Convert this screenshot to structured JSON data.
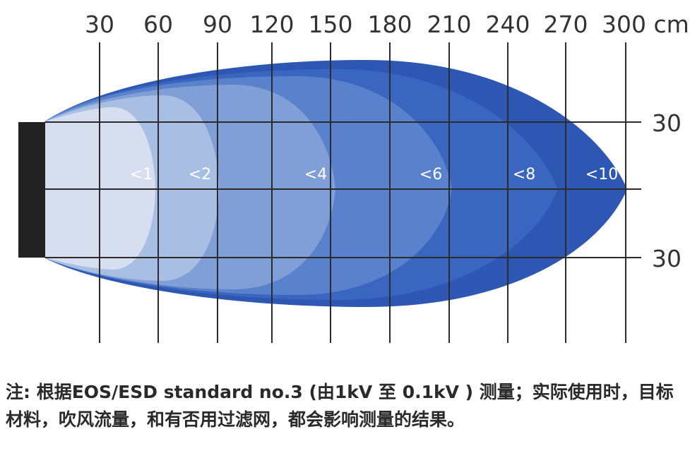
{
  "axis": {
    "top_ticks": [
      "30",
      "60",
      "90",
      "120",
      "150",
      "180",
      "210",
      "240",
      "270",
      "300 cm"
    ],
    "right_ticks": [
      "30",
      "30"
    ]
  },
  "zones": [
    {
      "label": "<10",
      "color": "#2e57b3"
    },
    {
      "label": "<8",
      "color": "#3a66c0"
    },
    {
      "label": "<6",
      "color": "#5a82cc"
    },
    {
      "label": "<4",
      "color": "#7f9fd6"
    },
    {
      "label": "<2",
      "color": "#a9bee3"
    },
    {
      "label": "<1",
      "color": "#d7def0"
    }
  ],
  "device_color": "#222222",
  "note": {
    "prefix": "注:",
    "text": "根据EOS/ESD standard no.3 (由1kV 至 0.1kV ) 测量；实际使用时，目标材料，吹风流量，和有否用过滤网，都会影响测量的结果。"
  }
}
